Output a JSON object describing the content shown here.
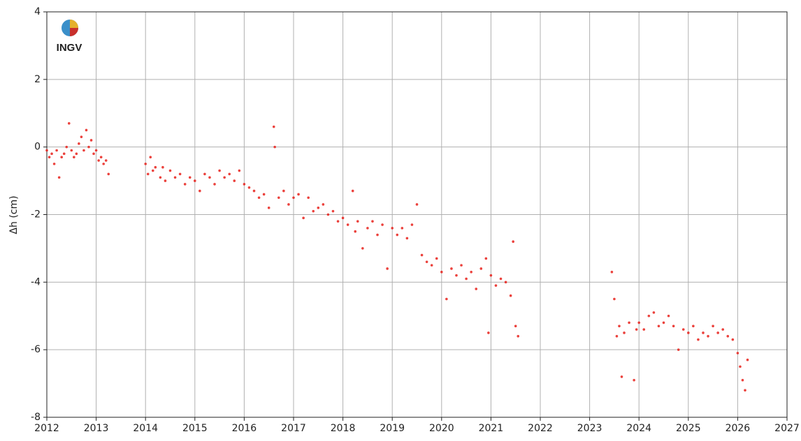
{
  "chart_data": {
    "type": "scatter",
    "ylabel": "Δh (cm)",
    "logo": "INGV",
    "color": "#e8201a",
    "grid": true,
    "xlim": [
      2012,
      2027
    ],
    "xticks": [
      2012,
      2013,
      2014,
      2015,
      2016,
      2017,
      2018,
      2019,
      2020,
      2021,
      2022,
      2023,
      2024,
      2025,
      2026,
      2027
    ],
    "ylim": [
      -8,
      4
    ],
    "yticks": [
      -8,
      -6,
      -4,
      -2,
      0,
      2,
      4
    ],
    "x": [
      2012.0,
      2012.05,
      2012.1,
      2012.15,
      2012.2,
      2012.25,
      2012.3,
      2012.35,
      2012.4,
      2012.45,
      2012.5,
      2012.55,
      2012.6,
      2012.65,
      2012.7,
      2012.75,
      2012.8,
      2012.85,
      2012.9,
      2012.95,
      2013.0,
      2013.05,
      2013.1,
      2013.15,
      2013.2,
      2013.25,
      2014.0,
      2014.05,
      2014.1,
      2014.15,
      2014.2,
      2014.3,
      2014.35,
      2014.4,
      2014.5,
      2014.6,
      2014.7,
      2014.8,
      2014.9,
      2015.0,
      2015.1,
      2015.2,
      2015.3,
      2015.4,
      2015.5,
      2015.6,
      2015.7,
      2015.8,
      2015.9,
      2016.0,
      2016.1,
      2016.2,
      2016.3,
      2016.4,
      2016.5,
      2016.6,
      2016.62,
      2016.7,
      2016.8,
      2016.9,
      2017.0,
      2017.1,
      2017.2,
      2017.3,
      2017.4,
      2017.5,
      2017.6,
      2017.7,
      2017.8,
      2017.9,
      2018.0,
      2018.1,
      2018.2,
      2018.25,
      2018.3,
      2018.4,
      2018.5,
      2018.6,
      2018.7,
      2018.8,
      2018.9,
      2019.0,
      2019.1,
      2019.2,
      2019.3,
      2019.4,
      2019.5,
      2019.6,
      2019.7,
      2019.8,
      2019.9,
      2020.0,
      2020.1,
      2020.2,
      2020.3,
      2020.4,
      2020.5,
      2020.6,
      2020.7,
      2020.8,
      2020.9,
      2020.95,
      2021.0,
      2021.1,
      2021.2,
      2021.3,
      2021.4,
      2021.45,
      2021.5,
      2021.55,
      2023.45,
      2023.5,
      2023.55,
      2023.6,
      2023.65,
      2023.7,
      2023.8,
      2023.9,
      2023.95,
      2024.0,
      2024.1,
      2024.2,
      2024.3,
      2024.4,
      2024.5,
      2024.6,
      2024.7,
      2024.8,
      2024.9,
      2025.0,
      2025.1,
      2025.2,
      2025.3,
      2025.4,
      2025.5,
      2025.6,
      2025.7,
      2025.8,
      2025.9,
      2026.0,
      2026.05,
      2026.1,
      2026.15,
      2026.2
    ],
    "values": [
      -0.1,
      -0.3,
      -0.2,
      -0.5,
      -0.1,
      -0.9,
      -0.3,
      -0.2,
      0.0,
      0.7,
      -0.1,
      -0.3,
      -0.2,
      0.1,
      0.3,
      -0.1,
      0.5,
      0.0,
      0.2,
      -0.2,
      -0.1,
      -0.4,
      -0.3,
      -0.5,
      -0.4,
      -0.8,
      -0.5,
      -0.8,
      -0.3,
      -0.7,
      -0.6,
      -0.9,
      -0.6,
      -1.0,
      -0.7,
      -0.9,
      -0.8,
      -1.1,
      -0.9,
      -1.0,
      -1.3,
      -0.8,
      -0.9,
      -1.1,
      -0.7,
      -0.9,
      -0.8,
      -1.0,
      -0.7,
      -1.1,
      -1.2,
      -1.3,
      -1.5,
      -1.4,
      -1.8,
      0.6,
      0.0,
      -1.5,
      -1.3,
      -1.7,
      -1.5,
      -1.4,
      -2.1,
      -1.5,
      -1.9,
      -1.8,
      -1.7,
      -2.0,
      -1.9,
      -2.2,
      -2.1,
      -2.3,
      -1.3,
      -2.5,
      -2.2,
      -3.0,
      -2.4,
      -2.2,
      -2.6,
      -2.3,
      -3.6,
      -2.4,
      -2.6,
      -2.4,
      -2.7,
      -2.3,
      -1.7,
      -3.2,
      -3.4,
      -3.5,
      -3.3,
      -3.7,
      -4.5,
      -3.6,
      -3.8,
      -3.5,
      -3.9,
      -3.7,
      -4.2,
      -3.6,
      -3.3,
      -5.5,
      -3.8,
      -4.1,
      -3.9,
      -4.0,
      -4.4,
      -2.8,
      -5.3,
      -5.6,
      -3.7,
      -4.5,
      -5.6,
      -5.3,
      -6.8,
      -5.5,
      -5.2,
      -6.9,
      -5.4,
      -5.2,
      -5.4,
      -5.0,
      -4.9,
      -5.3,
      -5.2,
      -5.0,
      -5.3,
      -6.0,
      -5.4,
      -5.5,
      -5.3,
      -5.7,
      -5.5,
      -5.6,
      -5.3,
      -5.5,
      -5.4,
      -5.6,
      -5.7,
      -6.1,
      -6.5,
      -6.9,
      -7.2,
      -6.3
    ]
  }
}
